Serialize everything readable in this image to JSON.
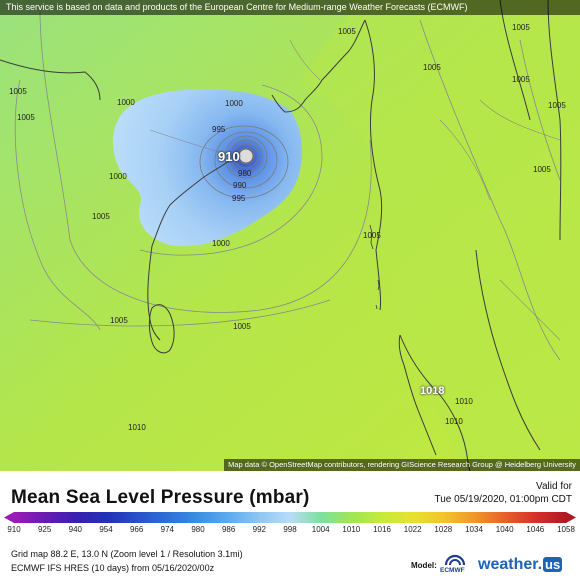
{
  "banner": "This service is based on data and products of the European Centre for Medium-range Weather Forecasts (ECMWF)",
  "credit": "Map data © OpenStreetMap contributors, rendering GIScience Research Group @ Heidelberg University",
  "title": "Mean Sea Level Pressure (mbar)",
  "valid_label": "Valid for",
  "valid_value": "Tue 05/19/2020, 01:00pm CDT",
  "scale_ticks": [
    "910",
    "925",
    "940",
    "954",
    "966",
    "974",
    "980",
    "986",
    "992",
    "998",
    "1004",
    "1010",
    "1016",
    "1022",
    "1028",
    "1034",
    "1040",
    "1046",
    "1058"
  ],
  "scale_colors": [
    "#9c1bb5",
    "#6a1bb0",
    "#3a1fb0",
    "#2230b8",
    "#2850c8",
    "#2e6fd6",
    "#3a8fe2",
    "#5eaaee",
    "#8ec6f4",
    "#b8dcf8",
    "#7ee0a0",
    "#9ee655",
    "#c6ea3a",
    "#e6e22e",
    "#f2c52a",
    "#f0982a",
    "#e8612a",
    "#d8302a",
    "#b01822"
  ],
  "grid_info": "Grid map 88.2 E, 13.0 N (Zoom level 1 / Resolution 3.1mi)",
  "model_info": "ECMWF IFS HRES (10 days)  from 05/16/2020/00z",
  "model_label": "Model:",
  "ecmwf_text": "ECMWF",
  "brand_main": "weather.",
  "brand_us": "us",
  "isobars": {
    "l1005_a": "1005",
    "l1005_b": "1005",
    "l1005_c": "1005",
    "l1005_d": "1005",
    "l1005_e": "1005",
    "l1005_f": "1005",
    "l1005_g": "1005",
    "l1005_h": "1005",
    "l1005_i": "1005",
    "l1005_j": "1005",
    "l1005_k": "1005",
    "l1005_l": "1005",
    "l1000_a": "1000",
    "l1000_b": "1000",
    "l1000_c": "1000",
    "l1000_d": "1000",
    "l995_a": "995",
    "l995_b": "995",
    "l990": "990",
    "l980": "980",
    "l910": "910",
    "l1018": "1018",
    "l1010_a": "1010",
    "l1010_b": "1010",
    "l1010_c": "1010"
  }
}
